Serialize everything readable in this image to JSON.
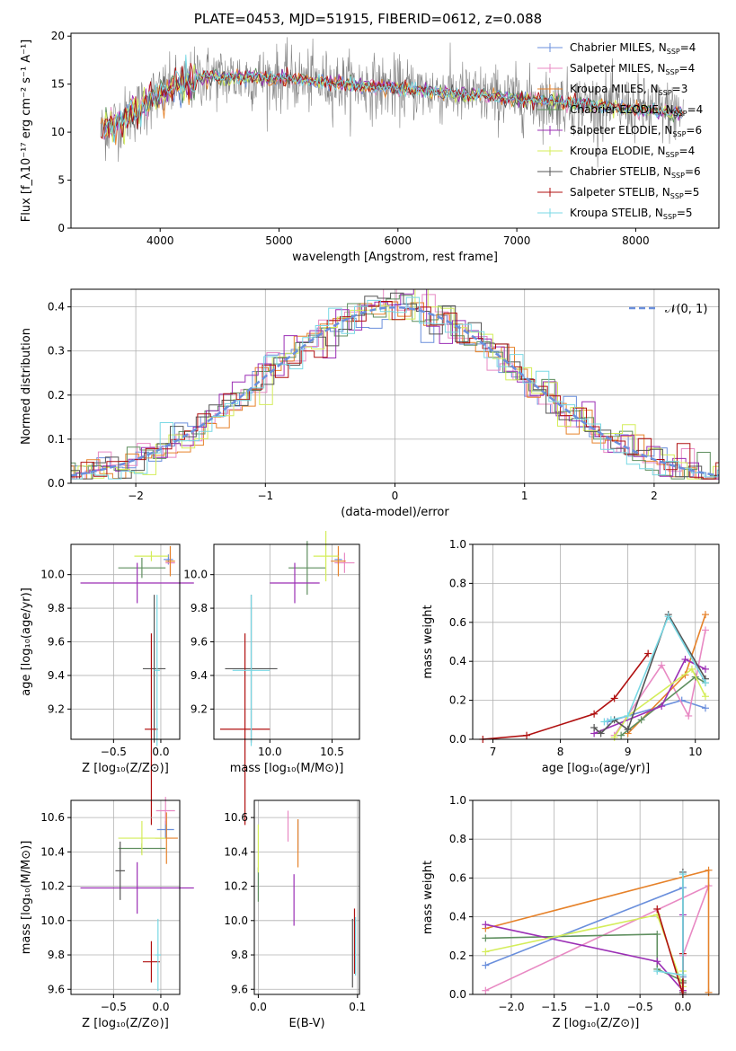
{
  "figure": {
    "title": "PLATE=0453, MJD=51915, FIBERID=0612, z=0.088"
  },
  "colors": {
    "series": [
      "#6a8fdc",
      "#e889c3",
      "#e6822a",
      "#5f8f5f",
      "#9b2fb5",
      "#d4ed5a",
      "#555555",
      "#b01010",
      "#79d8e4"
    ],
    "gaussian": "#6a8fdc",
    "grid": "#b0b0b0"
  },
  "chart_data": [
    {
      "id": "spectrum",
      "type": "line",
      "xlabel": "wavelength [Angstrom, rest frame]",
      "ylabel": "Flux [f_λ10⁻¹⁷ erg cm⁻² s⁻¹ A⁻¹]",
      "xlim": [
        3250,
        8700
      ],
      "ylim": [
        0,
        20.3
      ],
      "xticks": [
        4000,
        5000,
        6000,
        7000,
        8000
      ],
      "yticks": [
        0,
        5,
        10,
        15,
        20
      ],
      "grid": false,
      "legend": "top-right",
      "data_x_range": [
        3500,
        8400
      ],
      "legend_entries": [
        {
          "name": "Chabrier MILES, N",
          "sub": "SSP",
          "tail": "=4"
        },
        {
          "name": "Salpeter MILES, N",
          "sub": "SSP",
          "tail": "=4"
        },
        {
          "name": "Kroupa MILES, N",
          "sub": "SSP",
          "tail": "=3"
        },
        {
          "name": "Chabrier ELODIE, N",
          "sub": "SSP",
          "tail": "=4"
        },
        {
          "name": "Salpeter ELODIE, N",
          "sub": "SSP",
          "tail": "=6"
        },
        {
          "name": "Kroupa ELODIE, N",
          "sub": "SSP",
          "tail": "=4"
        },
        {
          "name": "Chabrier STELIB, N",
          "sub": "SSP",
          "tail": "=6"
        },
        {
          "name": "Salpeter STELIB, N",
          "sub": "SSP",
          "tail": "=5"
        },
        {
          "name": "Kroupa STELIB, N",
          "sub": "SSP",
          "tail": "=5"
        }
      ]
    },
    {
      "id": "residuals",
      "type": "histogram",
      "xlabel": "(data-model)/error",
      "ylabel": "Normed distribution",
      "xlim": [
        -2.5,
        2.5
      ],
      "ylim": [
        0,
        0.44
      ],
      "xticks": [
        -2,
        -1,
        0,
        1,
        2
      ],
      "yticks": [
        0.0,
        0.1,
        0.2,
        0.3,
        0.4
      ],
      "grid": true,
      "legend": "top-right",
      "legend_label": "𝒩(0, 1)"
    },
    {
      "id": "age_vs_Z",
      "type": "errorbar",
      "xlabel": "Z [log₁₀(Z/Z⊙)]",
      "ylabel": "age  [log₁₀(age/yr)]",
      "xlim": [
        -0.95,
        0.2
      ],
      "ylim": [
        9.02,
        10.18
      ],
      "xticks": [
        -0.5,
        0.0
      ],
      "yticks": [
        9.2,
        9.4,
        9.6,
        9.8,
        10.0
      ],
      "grid": true,
      "points": [
        {
          "x": 0.08,
          "y": 10.09,
          "xerr": 0.05,
          "yerr": 0.03
        },
        {
          "x": 0.1,
          "y": 10.07,
          "xerr": 0.05,
          "yerr": 0.06
        },
        {
          "x": 0.1,
          "y": 10.08,
          "xerr": 0.05,
          "yerr": 0.09
        },
        {
          "x": -0.2,
          "y": 10.04,
          "xerr": 0.25,
          "yerr": 0.06
        },
        {
          "x": -0.25,
          "y": 9.95,
          "xerr": 0.6,
          "yerr": 0.12
        },
        {
          "x": -0.1,
          "y": 10.11,
          "xerr": 0.18,
          "yerr": 0.03
        },
        {
          "x": -0.07,
          "y": 9.44,
          "xerr": 0.12,
          "yerr": 0.44
        },
        {
          "x": -0.1,
          "y": 9.08,
          "xerr": 0.07,
          "yerr": 0.57
        },
        {
          "x": -0.04,
          "y": 9.43,
          "xerr": 0.03,
          "yerr": 0.45
        }
      ]
    },
    {
      "id": "age_vs_mass",
      "type": "errorbar",
      "xlabel": "mass [log₁₀(M/M⊙)]",
      "ylabel": "",
      "xlim": [
        9.55,
        10.72
      ],
      "ylim": [
        9.02,
        10.18
      ],
      "xticks": [
        10.0,
        10.5
      ],
      "yticks": [
        9.2,
        9.4,
        9.6,
        9.8,
        10.0
      ],
      "grid": true,
      "points": [
        {
          "x": 10.55,
          "y": 10.09,
          "xerr": 0.03,
          "yerr": 0.03
        },
        {
          "x": 10.6,
          "y": 10.07,
          "xerr": 0.08,
          "yerr": 0.06
        },
        {
          "x": 10.55,
          "y": 10.08,
          "xerr": 0.06,
          "yerr": 0.09
        },
        {
          "x": 10.3,
          "y": 10.04,
          "xerr": 0.15,
          "yerr": 0.16
        },
        {
          "x": 10.2,
          "y": 9.95,
          "xerr": 0.2,
          "yerr": 0.12
        },
        {
          "x": 10.45,
          "y": 10.11,
          "xerr": 0.1,
          "yerr": 0.15
        },
        {
          "x": 9.85,
          "y": 9.44,
          "xerr": 0.21,
          "yerr": 0.44
        },
        {
          "x": 9.8,
          "y": 9.08,
          "xerr": 0.2,
          "yerr": 0.57
        },
        {
          "x": 9.85,
          "y": 9.43,
          "xerr": 0.15,
          "yerr": 0.45
        }
      ]
    },
    {
      "id": "weight_vs_age",
      "type": "line",
      "xlabel": "age  [log₁₀(age/yr)]",
      "ylabel": "mass weight",
      "xlim": [
        6.7,
        10.35
      ],
      "ylim": [
        0,
        1.0
      ],
      "xticks": [
        7,
        8,
        9,
        10
      ],
      "yticks": [
        0.0,
        0.2,
        0.4,
        0.6,
        0.8,
        1.0
      ],
      "grid": true,
      "series": [
        {
          "x": [
            8.7,
            9.8,
            10.15
          ],
          "y": [
            0.09,
            0.2,
            0.16
          ]
        },
        {
          "x": [
            8.8,
            9.5,
            9.9,
            10.15
          ],
          "y": [
            0.02,
            0.38,
            0.12,
            0.56
          ]
        },
        {
          "x": [
            9.0,
            9.85,
            10.15
          ],
          "y": [
            0.03,
            0.33,
            0.64
          ]
        },
        {
          "x": [
            8.9,
            9.2,
            10.0,
            10.15
          ],
          "y": [
            0.02,
            0.1,
            0.32,
            0.29
          ]
        },
        {
          "x": [
            8.5,
            9.5,
            9.85,
            10.15
          ],
          "y": [
            0.03,
            0.17,
            0.41,
            0.36
          ]
        },
        {
          "x": [
            8.8,
            9.0,
            9.95,
            10.15
          ],
          "y": [
            0.01,
            0.12,
            0.36,
            0.22
          ]
        },
        {
          "x": [
            8.5,
            8.6,
            8.8,
            9.0,
            9.6,
            10.15
          ],
          "y": [
            0.06,
            0.03,
            0.1,
            0.05,
            0.64,
            0.31
          ]
        },
        {
          "x": [
            6.85,
            7.5,
            8.5,
            8.8,
            9.3
          ],
          "y": [
            0.0,
            0.02,
            0.13,
            0.21,
            0.44
          ]
        },
        {
          "x": [
            8.65,
            8.75,
            9.0,
            9.6,
            10.15
          ],
          "y": [
            0.09,
            0.1,
            0.12,
            0.63,
            0.29
          ]
        }
      ]
    },
    {
      "id": "mass_vs_Z",
      "type": "errorbar",
      "xlabel": "Z [log₁₀(Z/Z⊙)]",
      "ylabel": "mass [log₁₀(M/M⊙)]",
      "xlim": [
        -0.95,
        0.2
      ],
      "ylim": [
        9.57,
        10.7
      ],
      "xticks": [
        -0.5,
        0.0
      ],
      "yticks": [
        9.6,
        9.8,
        10.0,
        10.2,
        10.4,
        10.6
      ],
      "grid": true,
      "points": [
        {
          "x": 0.05,
          "y": 10.53,
          "xerr": 0.09,
          "yerr": 0.05
        },
        {
          "x": 0.05,
          "y": 10.64,
          "xerr": 0.1,
          "yerr": 0.08
        },
        {
          "x": 0.06,
          "y": 10.48,
          "xerr": 0.12,
          "yerr": 0.15
        },
        {
          "x": -0.2,
          "y": 10.42,
          "xerr": 0.25,
          "yerr": 0.03
        },
        {
          "x": -0.25,
          "y": 10.19,
          "xerr": 0.6,
          "yerr": 0.15
        },
        {
          "x": -0.2,
          "y": 10.48,
          "xerr": 0.25,
          "yerr": 0.1
        },
        {
          "x": -0.43,
          "y": 10.29,
          "xerr": 0.05,
          "yerr": 0.17
        },
        {
          "x": -0.1,
          "y": 9.76,
          "xerr": 0.09,
          "yerr": 0.12
        },
        {
          "x": -0.03,
          "y": 9.8,
          "xerr": 0.03,
          "yerr": 0.21
        }
      ]
    },
    {
      "id": "mass_vs_ebv",
      "type": "errorbar",
      "xlabel": "E(B-V)",
      "ylabel": "",
      "xlim": [
        -0.004,
        0.102
      ],
      "ylim": [
        9.57,
        10.7
      ],
      "xticks": [
        0.0,
        0.1
      ],
      "yticks": [
        9.6,
        9.8,
        10.0,
        10.2,
        10.4,
        10.6
      ],
      "grid": true,
      "points": [
        {
          "x": 0.04,
          "y": 10.5,
          "xerr": 0,
          "yerr": 0.09
        },
        {
          "x": 0.03,
          "y": 10.55,
          "xerr": 0,
          "yerr": 0.09
        },
        {
          "x": 0.04,
          "y": 10.45,
          "xerr": 0,
          "yerr": 0.14
        },
        {
          "x": 0.0,
          "y": 10.21,
          "xerr": 0,
          "yerr": 0.1
        },
        {
          "x": 0.036,
          "y": 10.12,
          "xerr": 0,
          "yerr": 0.15
        },
        {
          "x": 0.0,
          "y": 10.42,
          "xerr": 0,
          "yerr": 0.14
        },
        {
          "x": 0.095,
          "y": 9.81,
          "xerr": 0,
          "yerr": 0.2
        },
        {
          "x": 0.097,
          "y": 9.88,
          "xerr": 0,
          "yerr": 0.19
        },
        {
          "x": 0.098,
          "y": 9.85,
          "xerr": 0,
          "yerr": 0.17
        }
      ]
    },
    {
      "id": "weight_vs_Z",
      "type": "line",
      "xlabel": "Z [log₁₀(Z/Z⊙)]",
      "ylabel": "mass weight",
      "xlim": [
        -2.45,
        0.42
      ],
      "ylim": [
        0,
        1.0
      ],
      "xticks": [
        -2.0,
        -1.5,
        -1.0,
        -0.5,
        0.0
      ],
      "yticks": [
        0.0,
        0.2,
        0.4,
        0.6,
        0.8,
        1.0
      ],
      "grid": true,
      "series": [
        {
          "x": [
            -2.3,
            0.0,
            0.0
          ],
          "y": [
            0.15,
            0.55,
            0.09
          ]
        },
        {
          "x": [
            -2.3,
            0.3,
            0.0,
            0.0
          ],
          "y": [
            0.02,
            0.56,
            0.2,
            0.02
          ]
        },
        {
          "x": [
            -2.3,
            0.3,
            0.3
          ],
          "y": [
            0.34,
            0.64,
            0.01
          ]
        },
        {
          "x": [
            -2.3,
            -0.3,
            -0.3,
            0.0
          ],
          "y": [
            0.29,
            0.31,
            0.13,
            0.07
          ]
        },
        {
          "x": [
            -2.3,
            -0.3,
            0.0,
            0.0
          ],
          "y": [
            0.36,
            0.17,
            0.02,
            0.41
          ]
        },
        {
          "x": [
            -2.3,
            -0.3,
            0.0,
            0.0
          ],
          "y": [
            0.22,
            0.41,
            0.04,
            0.12
          ]
        },
        {
          "x": [
            0.0,
            0.0,
            0.0
          ],
          "y": [
            0.63,
            0.06,
            0.01
          ]
        },
        {
          "x": [
            -0.3,
            0.0,
            0.0
          ],
          "y": [
            0.44,
            0.0,
            0.21
          ]
        },
        {
          "x": [
            -0.3,
            0.0,
            0.0
          ],
          "y": [
            0.12,
            0.1,
            0.62
          ]
        }
      ]
    }
  ]
}
